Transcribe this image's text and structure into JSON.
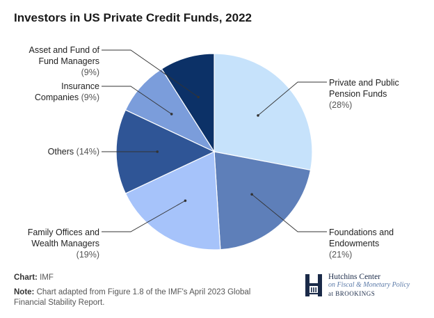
{
  "chart_data": {
    "type": "pie",
    "title": "Investors in US Private Credit Funds, 2022",
    "slices": [
      {
        "label": [
          "Private and Public",
          "Pension Funds"
        ],
        "pct_label": "(28%)",
        "value": 28,
        "color": "#c6e2fb"
      },
      {
        "label": [
          "Foundations and",
          "Endowments"
        ],
        "pct_label": "(21%)",
        "value": 21,
        "color": "#5e7fb9"
      },
      {
        "label": [
          "Family Offices and",
          "Wealth Managers"
        ],
        "pct_label": "(19%)",
        "value": 19,
        "color": "#a6c3fa"
      },
      {
        "label": [
          "Others"
        ],
        "pct_label": "(14%)",
        "value": 14,
        "color": "#2f5596"
      },
      {
        "label": [
          "Insurance",
          "Companies"
        ],
        "pct_label": "(9%)",
        "value": 9,
        "color": "#7b9ddb"
      },
      {
        "label": [
          "Asset and Fund of",
          "Fund Managers"
        ],
        "pct_label": "(9%)",
        "value": 9,
        "color": "#0c3167"
      }
    ]
  },
  "footer": {
    "source_label": "Chart:",
    "source_value": "IMF",
    "note_label": "Note:",
    "note_line1": "Chart adapted from Figure 1.8 of the IMF's April 2023 Global",
    "note_line2": "Financial Stability Report."
  },
  "logo": {
    "line1": "Hutchins Center",
    "line2": "on Fiscal & Monetary Policy",
    "line3": "at BROOKINGS"
  },
  "colors": {
    "leader": "#333333",
    "logo_navy": "#1a2a48"
  }
}
